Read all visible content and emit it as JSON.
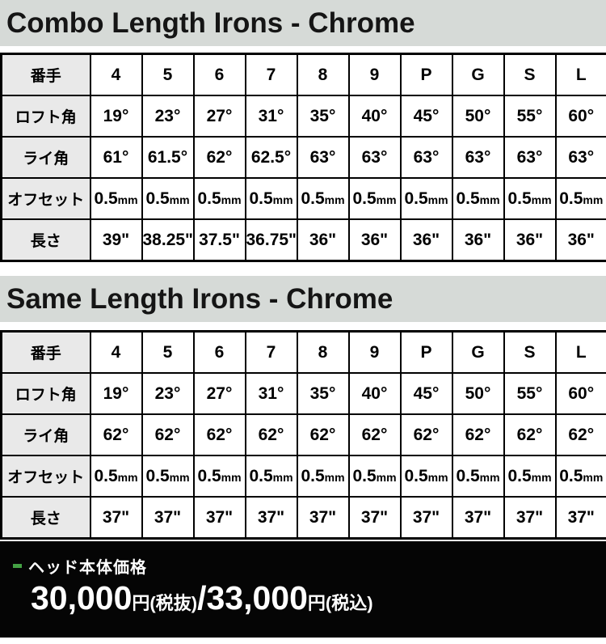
{
  "colors": {
    "title_band_bg": "#d6dad7",
    "label_cell_bg": "#e9e9e9",
    "table_border": "#000000",
    "footer_bg": "#050505",
    "bullet_green": "#44a044",
    "footer_text": "#ffffff"
  },
  "sections": [
    {
      "title": "Combo Length Irons - Chrome",
      "table": {
        "corner_label": "番手",
        "columns": [
          "4",
          "5",
          "6",
          "7",
          "8",
          "9",
          "P",
          "G",
          "S",
          "L"
        ],
        "rows": [
          {
            "label": "ロフト角",
            "values": [
              "19°",
              "23°",
              "27°",
              "31°",
              "35°",
              "40°",
              "45°",
              "50°",
              "55°",
              "60°"
            ]
          },
          {
            "label": "ライ角",
            "values": [
              "61°",
              "61.5°",
              "62°",
              "62.5°",
              "63°",
              "63°",
              "63°",
              "63°",
              "63°",
              "63°"
            ]
          },
          {
            "label": "オフセット",
            "values": [
              "0.5mm",
              "0.5mm",
              "0.5mm",
              "0.5mm",
              "0.5mm",
              "0.5mm",
              "0.5mm",
              "0.5mm",
              "0.5mm",
              "0.5mm"
            ]
          },
          {
            "label": "長さ",
            "values": [
              "39\"",
              "38.25\"",
              "37.5\"",
              "36.75\"",
              "36\"",
              "36\"",
              "36\"",
              "36\"",
              "36\"",
              "36\""
            ]
          }
        ]
      }
    },
    {
      "title": "Same Length Irons - Chrome",
      "table": {
        "corner_label": "番手",
        "columns": [
          "4",
          "5",
          "6",
          "7",
          "8",
          "9",
          "P",
          "G",
          "S",
          "L"
        ],
        "rows": [
          {
            "label": "ロフト角",
            "values": [
              "19°",
              "23°",
              "27°",
              "31°",
              "35°",
              "40°",
              "45°",
              "50°",
              "55°",
              "60°"
            ]
          },
          {
            "label": "ライ角",
            "values": [
              "62°",
              "62°",
              "62°",
              "62°",
              "62°",
              "62°",
              "62°",
              "62°",
              "62°",
              "62°"
            ]
          },
          {
            "label": "オフセット",
            "values": [
              "0.5mm",
              "0.5mm",
              "0.5mm",
              "0.5mm",
              "0.5mm",
              "0.5mm",
              "0.5mm",
              "0.5mm",
              "0.5mm",
              "0.5mm"
            ]
          },
          {
            "label": "長さ",
            "values": [
              "37\"",
              "37\"",
              "37\"",
              "37\"",
              "37\"",
              "37\"",
              "37\"",
              "37\"",
              "37\"",
              "37\""
            ]
          }
        ]
      }
    }
  ],
  "footer": {
    "label": "ヘッド本体価格",
    "price_parts": [
      {
        "text": "30,000",
        "size": "lg"
      },
      {
        "text": "円",
        "size": "sm"
      },
      {
        "text": "(税抜)",
        "size": "sm"
      },
      {
        "text": "/",
        "size": "lg"
      },
      {
        "text": "33,000",
        "size": "lg"
      },
      {
        "text": "円",
        "size": "sm"
      },
      {
        "text": "(税込)",
        "size": "sm"
      }
    ]
  }
}
